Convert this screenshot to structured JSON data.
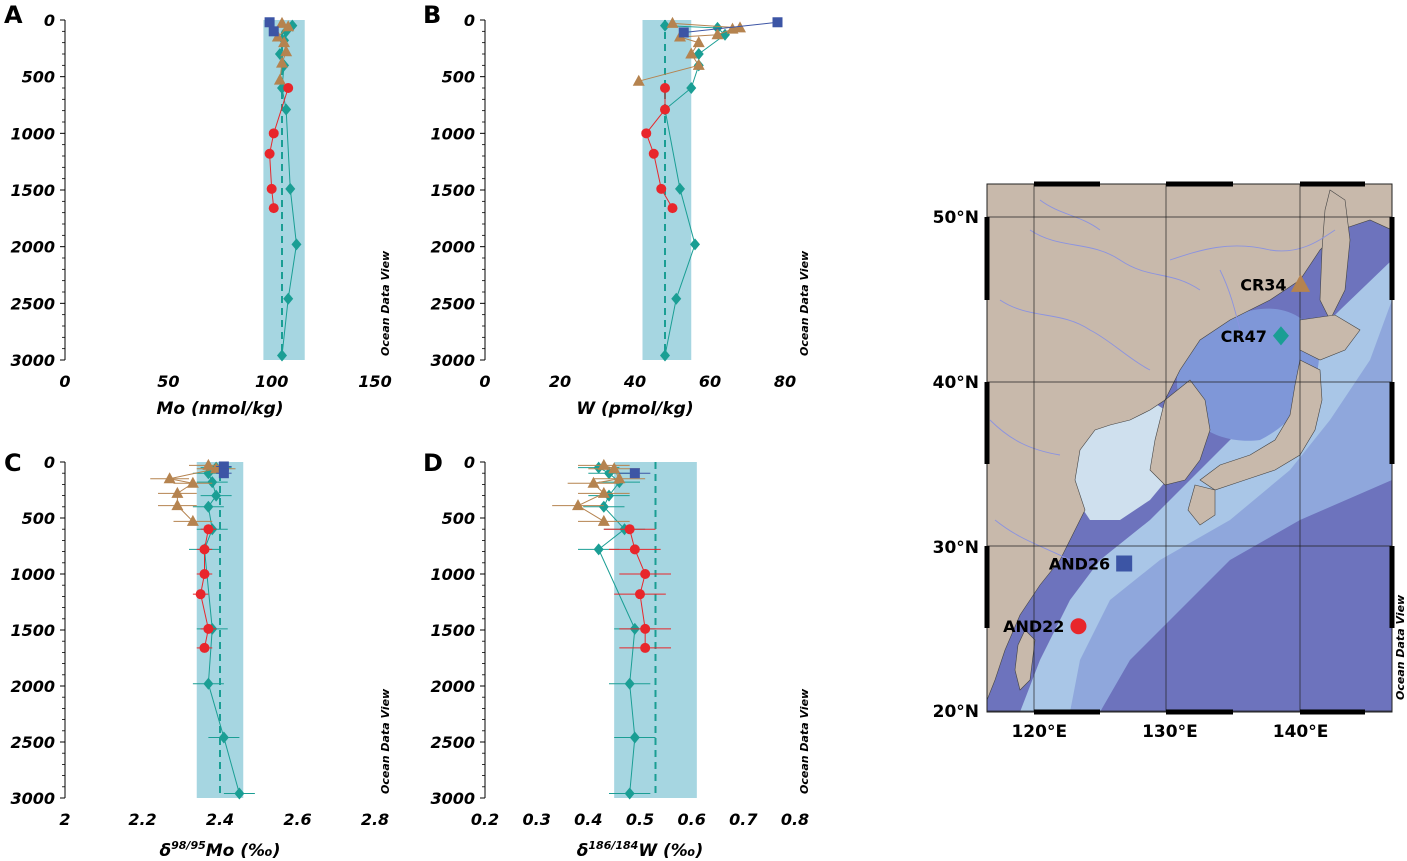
{
  "colors": {
    "AND22": "#e8262b",
    "AND26": "#3c55a5",
    "CR34": "#b5834f",
    "CR47": "#1a9e94",
    "band": "#a6d6e1",
    "mean_line": "#1a9e94"
  },
  "odv_label": "Ocean Data View",
  "chart_data": [
    {
      "panel": "A",
      "type": "scatter",
      "xlabel": "Mo (nmol/kg)",
      "ylabel": "",
      "xlim": [
        0,
        150
      ],
      "ylim": [
        3000,
        0
      ],
      "xticks": [
        0,
        50,
        100,
        150
      ],
      "xtick_labels": [
        "0",
        "50",
        "100",
        "150"
      ],
      "yticks": [
        0,
        500,
        1000,
        1500,
        2000,
        2500,
        3000
      ],
      "ytick_labels": [
        "0",
        "500",
        "1000",
        "1500",
        "2000",
        "2500",
        "3000"
      ],
      "band": [
        96,
        116
      ],
      "mean": 105,
      "series": [
        {
          "station": "AND22",
          "marker": "circle",
          "points": [
            [
              108,
              600
            ],
            [
              101,
              1000
            ],
            [
              99,
              1180
            ],
            [
              100,
              1490
            ],
            [
              101,
              1660
            ]
          ]
        },
        {
          "station": "AND26",
          "marker": "square",
          "points": [
            [
              99,
              20
            ],
            [
              101,
              100
            ]
          ]
        },
        {
          "station": "CR34",
          "marker": "triangle",
          "points": [
            [
              105,
              30
            ],
            [
              108,
              60
            ],
            [
              103,
              150
            ],
            [
              106,
              200
            ],
            [
              107,
              280
            ],
            [
              105,
              380
            ],
            [
              104,
              530
            ]
          ]
        },
        {
          "station": "CR47",
          "marker": "diamond",
          "points": [
            [
              110,
              50
            ],
            [
              107,
              100
            ],
            [
              106,
              180
            ],
            [
              104,
              300
            ],
            [
              106,
              400
            ],
            [
              105,
              600
            ],
            [
              107,
              790
            ],
            [
              109,
              1490
            ],
            [
              112,
              1980
            ],
            [
              108,
              2460
            ],
            [
              105,
              2960
            ]
          ]
        }
      ]
    },
    {
      "panel": "B",
      "type": "scatter",
      "xlabel": "W (pmol/kg)",
      "ylabel": "",
      "xlim": [
        0,
        80
      ],
      "ylim": [
        3000,
        0
      ],
      "xticks": [
        0,
        20,
        40,
        60,
        80
      ],
      "xtick_labels": [
        "0",
        "20",
        "40",
        "60",
        "80"
      ],
      "yticks": [
        0,
        500,
        1000,
        1500,
        2000,
        2500,
        3000
      ],
      "ytick_labels": [
        "0",
        "500",
        "1000",
        "1500",
        "2000",
        "2500",
        "3000"
      ],
      "band": [
        42,
        55
      ],
      "mean": 48,
      "series": [
        {
          "station": "AND22",
          "marker": "circle",
          "points": [
            [
              48,
              600
            ],
            [
              48,
              790
            ],
            [
              43,
              1000
            ],
            [
              45,
              1180
            ],
            [
              47,
              1490
            ],
            [
              50,
              1660
            ]
          ]
        },
        {
          "station": "AND26",
          "marker": "square",
          "points": [
            [
              78,
              20
            ],
            [
              53,
              110
            ]
          ]
        },
        {
          "station": "CR34",
          "marker": "triangle",
          "points": [
            [
              50,
              30
            ],
            [
              68,
              70
            ],
            [
              66,
              80
            ],
            [
              62,
              130
            ],
            [
              52,
              150
            ],
            [
              57,
              200
            ],
            [
              55,
              300
            ],
            [
              57,
              400
            ],
            [
              41,
              540
            ]
          ]
        },
        {
          "station": "CR47",
          "marker": "diamond",
          "points": [
            [
              48,
              50
            ],
            [
              62,
              70
            ],
            [
              64,
              130
            ],
            [
              57,
              300
            ],
            [
              57,
              400
            ],
            [
              55,
              600
            ],
            [
              48,
              790
            ],
            [
              52,
              1490
            ],
            [
              56,
              1980
            ],
            [
              51,
              2460
            ],
            [
              48,
              2960
            ]
          ]
        }
      ]
    },
    {
      "panel": "C",
      "type": "scatter",
      "xlabel_main": "δ",
      "xlabel_sup": "98/95",
      "xlabel_rest": "Mo (‰)",
      "xlim": [
        2,
        2.8
      ],
      "ylim": [
        3000,
        0
      ],
      "xticks": [
        2,
        2.2,
        2.4,
        2.6,
        2.8
      ],
      "xtick_labels": [
        "2",
        "2.2",
        "2.4",
        "2.6",
        "2.8"
      ],
      "yticks": [
        0,
        500,
        1000,
        1500,
        2000,
        2500,
        3000
      ],
      "ytick_labels": [
        "0",
        "500",
        "1000",
        "1500",
        "2000",
        "2500",
        "3000"
      ],
      "band": [
        2.34,
        2.46
      ],
      "mean": 2.4,
      "series": [
        {
          "station": "AND22",
          "marker": "circle",
          "err": 0.02,
          "points": [
            [
              2.37,
              600
            ],
            [
              2.36,
              780
            ],
            [
              2.36,
              1000
            ],
            [
              2.35,
              1180
            ],
            [
              2.37,
              1490
            ],
            [
              2.36,
              1660
            ]
          ]
        },
        {
          "station": "AND26",
          "marker": "square",
          "err": 0.02,
          "points": [
            [
              2.41,
              40
            ],
            [
              2.41,
              100
            ]
          ]
        },
        {
          "station": "CR34",
          "marker": "triangle",
          "err": 0.05,
          "points": [
            [
              2.37,
              30
            ],
            [
              2.39,
              60
            ],
            [
              2.27,
              150
            ],
            [
              2.33,
              190
            ],
            [
              2.29,
              280
            ],
            [
              2.29,
              390
            ],
            [
              2.33,
              530
            ]
          ]
        },
        {
          "station": "CR47",
          "marker": "diamond",
          "err": 0.04,
          "points": [
            [
              2.39,
              50
            ],
            [
              2.37,
              100
            ],
            [
              2.38,
              180
            ],
            [
              2.39,
              300
            ],
            [
              2.37,
              400
            ],
            [
              2.38,
              600
            ],
            [
              2.36,
              780
            ],
            [
              2.38,
              1490
            ],
            [
              2.37,
              1980
            ],
            [
              2.41,
              2460
            ],
            [
              2.45,
              2960
            ]
          ]
        }
      ]
    },
    {
      "panel": "D",
      "type": "scatter",
      "xlabel_main": "δ",
      "xlabel_sup": "186/184",
      "xlabel_rest": "W (‰)",
      "xlim": [
        0.2,
        0.8
      ],
      "ylim": [
        3000,
        0
      ],
      "xticks": [
        0.2,
        0.3,
        0.4,
        0.5,
        0.6,
        0.7,
        0.8
      ],
      "xtick_labels": [
        "0.2",
        "0.3",
        "0.4",
        "0.5",
        "0.6",
        "0.7",
        "0.8"
      ],
      "yticks": [
        0,
        500,
        1000,
        1500,
        2000,
        2500,
        3000
      ],
      "ytick_labels": [
        "0",
        "500",
        "1000",
        "1500",
        "2000",
        "2500",
        "3000"
      ],
      "band": [
        0.45,
        0.61
      ],
      "mean": 0.53,
      "series": [
        {
          "station": "AND22",
          "marker": "circle",
          "err": 0.05,
          "points": [
            [
              0.48,
              600
            ],
            [
              0.49,
              780
            ],
            [
              0.51,
              1000
            ],
            [
              0.5,
              1180
            ],
            [
              0.51,
              1490
            ],
            [
              0.51,
              1660
            ]
          ]
        },
        {
          "station": "AND26",
          "marker": "square",
          "err": 0.03,
          "points": [
            [
              0.49,
              100
            ]
          ]
        },
        {
          "station": "CR34",
          "marker": "triangle",
          "err": 0.05,
          "points": [
            [
              0.43,
              30
            ],
            [
              0.45,
              60
            ],
            [
              0.46,
              150
            ],
            [
              0.41,
              190
            ],
            [
              0.43,
              280
            ],
            [
              0.38,
              390
            ],
            [
              0.43,
              530
            ]
          ]
        },
        {
          "station": "CR47",
          "marker": "diamond",
          "err": 0.04,
          "points": [
            [
              0.42,
              50
            ],
            [
              0.44,
              100
            ],
            [
              0.46,
              180
            ],
            [
              0.44,
              300
            ],
            [
              0.43,
              400
            ],
            [
              0.47,
              600
            ],
            [
              0.42,
              780
            ],
            [
              0.49,
              1490
            ],
            [
              0.48,
              1980
            ],
            [
              0.49,
              2460
            ],
            [
              0.48,
              2960
            ]
          ]
        }
      ]
    },
    {
      "panel": "map",
      "type": "map",
      "lon_range": [
        116,
        147
      ],
      "lat_range": [
        20,
        52
      ],
      "lon_ticks": [
        120,
        130,
        140
      ],
      "lon_tick_labels": [
        "120°E",
        "130°E",
        "140°E"
      ],
      "lat_ticks": [
        20,
        30,
        40,
        50
      ],
      "lat_tick_labels": [
        "20°N",
        "30°N",
        "40°N",
        "50°N"
      ],
      "stations": [
        {
          "name": "CR34",
          "marker": "triangle",
          "lon": 140,
          "lat": 45.9
        },
        {
          "name": "CR47",
          "marker": "diamond",
          "lon": 138.5,
          "lat": 42.8
        },
        {
          "name": "AND26",
          "marker": "square",
          "lon": 126.5,
          "lat": 29
        },
        {
          "name": "AND22",
          "marker": "circle",
          "lon": 123,
          "lat": 25.2
        }
      ]
    }
  ]
}
